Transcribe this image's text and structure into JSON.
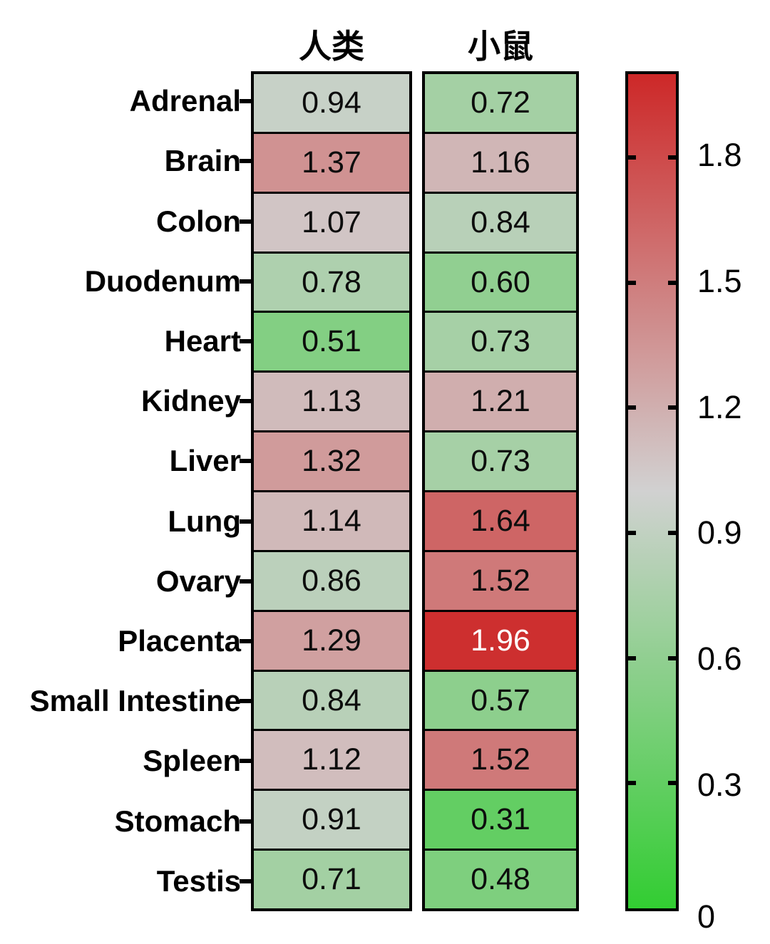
{
  "figure": {
    "background": "#ffffff",
    "columns": [
      {
        "id": "human",
        "label": "人类"
      },
      {
        "id": "mouse",
        "label": "小鼠"
      }
    ],
    "rows": [
      {
        "label": "Adrenal",
        "values": [
          "0.94",
          "0.72"
        ]
      },
      {
        "label": "Brain",
        "values": [
          "1.37",
          "1.16"
        ]
      },
      {
        "label": "Colon",
        "values": [
          "1.07",
          "0.84"
        ]
      },
      {
        "label": "Duodenum",
        "values": [
          "0.78",
          "0.60"
        ]
      },
      {
        "label": "Heart",
        "values": [
          "0.51",
          "0.73"
        ]
      },
      {
        "label": "Kidney",
        "values": [
          "1.13",
          "1.21"
        ]
      },
      {
        "label": "Liver",
        "values": [
          "1.32",
          "0.73"
        ]
      },
      {
        "label": "Lung",
        "values": [
          "1.14",
          "1.64"
        ]
      },
      {
        "label": "Ovary",
        "values": [
          "0.86",
          "1.52"
        ]
      },
      {
        "label": "Placenta",
        "values": [
          "1.29",
          "1.96"
        ]
      },
      {
        "label": "Small Intestine",
        "values": [
          "0.84",
          "0.57"
        ]
      },
      {
        "label": "Spleen",
        "values": [
          "1.12",
          "1.52"
        ]
      },
      {
        "label": "Stomach",
        "values": [
          "0.91",
          "0.31"
        ]
      },
      {
        "label": "Testis",
        "values": [
          "0.71",
          "0.48"
        ]
      }
    ],
    "colorbar": {
      "tick_labels": [
        "1.8",
        "1.5",
        "1.2",
        "0.9",
        "0.6",
        "0.3",
        "0"
      ],
      "tick_values": [
        1.8,
        1.5,
        1.2,
        0.9,
        0.6,
        0.3,
        0
      ],
      "min": 0,
      "max": 2
    },
    "colors": {
      "low": "#32cd32",
      "mid": "#d1d1d1",
      "high": "#cd2828",
      "border": "#000000",
      "text": "#000000",
      "cell_text_light": "#ffffff",
      "white_text_threshold": 1.9
    }
  },
  "chart_data": {
    "type": "heatmap",
    "title": "",
    "columns": [
      "人类",
      "小鼠"
    ],
    "rows": [
      "Adrenal",
      "Brain",
      "Colon",
      "Duodenum",
      "Heart",
      "Kidney",
      "Liver",
      "Lung",
      "Ovary",
      "Placenta",
      "Small Intestine",
      "Spleen",
      "Stomach",
      "Testis"
    ],
    "series": [
      {
        "name": "人类",
        "values": [
          0.94,
          1.37,
          1.07,
          0.78,
          0.51,
          1.13,
          1.32,
          1.14,
          0.86,
          1.29,
          0.84,
          1.12,
          0.91,
          0.71
        ]
      },
      {
        "name": "小鼠",
        "values": [
          0.72,
          1.16,
          0.84,
          0.6,
          0.73,
          1.21,
          0.73,
          1.64,
          1.52,
          1.96,
          0.57,
          1.52,
          0.31,
          0.48
        ]
      }
    ],
    "value_range": [
      0,
      2
    ],
    "colorbar_ticks": [
      0,
      0.3,
      0.6,
      0.9,
      1.2,
      1.5,
      1.8
    ],
    "colormap": "green-gray-red diverging",
    "legend_position": "right-colorbar",
    "grid": false
  }
}
